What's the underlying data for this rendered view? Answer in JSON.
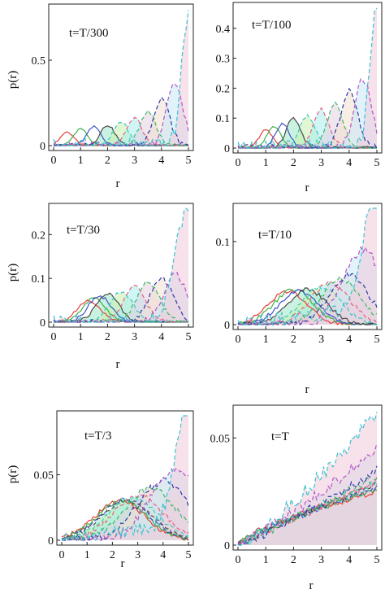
{
  "figure": {
    "ylabel": "p(r)",
    "xlabel": "r"
  },
  "chart_data": [
    {
      "type": "line",
      "title": "t=T/300",
      "xlabel": "r",
      "ylabel": "p(r)",
      "xlim": [
        0,
        5
      ],
      "ylim": [
        0,
        0.8
      ],
      "xticks": [
        "0",
        "1",
        "2",
        "3",
        "4",
        "5"
      ],
      "yticks": [
        "0",
        "0.5"
      ],
      "ytick_values": [
        0,
        0.5
      ],
      "series_peak_r": [
        0.5,
        1.0,
        1.5,
        2.0,
        2.5,
        3.0,
        3.5,
        4.0,
        4.5,
        5.0
      ],
      "series_peak_p": [
        0.08,
        0.1,
        0.11,
        0.12,
        0.14,
        0.16,
        0.2,
        0.28,
        0.36,
        0.77
      ]
    },
    {
      "type": "line",
      "title": "t=T/100",
      "xlabel": "r",
      "ylabel": "p(r)",
      "xlim": [
        0,
        5
      ],
      "ylim": [
        0,
        0.47
      ],
      "xticks": [
        "0",
        "1",
        "2",
        "3",
        "4",
        "5"
      ],
      "yticks": [
        "0",
        "0.1",
        "0.2",
        "0.3",
        "0.4"
      ],
      "ytick_values": [
        0,
        0.1,
        0.2,
        0.3,
        0.4
      ],
      "series_peak_r": [
        1.0,
        1.3,
        1.6,
        2.0,
        2.5,
        3.0,
        3.5,
        4.0,
        4.5,
        5.0
      ],
      "series_peak_p": [
        0.06,
        0.07,
        0.08,
        0.1,
        0.11,
        0.13,
        0.15,
        0.19,
        0.23,
        0.46
      ]
    },
    {
      "type": "line",
      "title": "t=T/30",
      "xlabel": "r",
      "ylabel": "p(r)",
      "xlim": [
        0,
        5
      ],
      "ylim": [
        0,
        0.26
      ],
      "xticks": [
        "0",
        "1",
        "2",
        "3",
        "4",
        "5"
      ],
      "yticks": [
        "0",
        "0.1",
        "0.2"
      ],
      "ytick_values": [
        0,
        0.1,
        0.2
      ],
      "series_peak_r": [
        1.3,
        1.5,
        1.7,
        2.0,
        2.5,
        3.0,
        3.5,
        4.0,
        4.5,
        5.0
      ],
      "series_peak_p": [
        0.05,
        0.055,
        0.06,
        0.065,
        0.07,
        0.08,
        0.09,
        0.1,
        0.11,
        0.26
      ]
    },
    {
      "type": "line",
      "title": "t=T/10",
      "xlabel": "r",
      "ylabel": "p(r)",
      "xlim": [
        0,
        5
      ],
      "ylim": [
        0,
        0.14
      ],
      "xticks": [
        "0",
        "1",
        "2",
        "3",
        "4",
        "5"
      ],
      "yticks": [
        "0",
        "0.1"
      ],
      "ytick_values": [
        0,
        0.1
      ],
      "series_peak_r": [
        1.8,
        2.0,
        2.2,
        2.5,
        3.0,
        3.3,
        3.7,
        4.0,
        4.5,
        5.0
      ],
      "series_peak_p": [
        0.04,
        0.042,
        0.04,
        0.042,
        0.045,
        0.05,
        0.055,
        0.06,
        0.09,
        0.14
      ]
    },
    {
      "type": "line",
      "title": "t=T/3",
      "xlabel": "r",
      "ylabel": "p(r)",
      "xlim": [
        0,
        5
      ],
      "ylim": [
        0,
        0.095
      ],
      "xticks": [
        "0",
        "1",
        "2",
        "3",
        "4",
        "5"
      ],
      "yticks": [
        "0",
        "0.05"
      ],
      "ytick_values": [
        0,
        0.05
      ],
      "series_peak_r": [
        2.3,
        2.4,
        2.5,
        2.6,
        2.8,
        3.0,
        3.5,
        4.0,
        4.5,
        5.0
      ],
      "series_peak_p": [
        0.03,
        0.03,
        0.031,
        0.03,
        0.032,
        0.034,
        0.04,
        0.045,
        0.055,
        0.092
      ]
    },
    {
      "type": "line",
      "title": "t=T",
      "xlabel": "r",
      "ylabel": "p(r)",
      "xlim": [
        0,
        5
      ],
      "ylim": [
        0,
        0.063
      ],
      "xticks": [
        "0",
        "1",
        "2",
        "3",
        "4",
        "5"
      ],
      "yticks": [
        "0",
        "0.05"
      ],
      "ytick_values": [
        0,
        0.05
      ],
      "series_peak_r": [
        5,
        5,
        5,
        5,
        5,
        5,
        5,
        5,
        5,
        5
      ],
      "series_peak_p": [
        0.025,
        0.026,
        0.027,
        0.028,
        0.029,
        0.03,
        0.032,
        0.035,
        0.045,
        0.062
      ]
    }
  ],
  "series_colors": [
    "#e8403b",
    "#41b04a",
    "#3d54c8",
    "#4a4a4a",
    "#3fc7c0",
    "#e86080",
    "#3fb86a",
    "#2a3aa8",
    "#b455c6",
    "#39c4d0"
  ],
  "fill_colors": [
    "#9fe8c8",
    "#c8f0b0",
    "#a8ecec",
    "#e6d0e0",
    "#f0e0d0",
    "#c8e8f8",
    "#f0c8d8",
    "#d8a8e8"
  ]
}
